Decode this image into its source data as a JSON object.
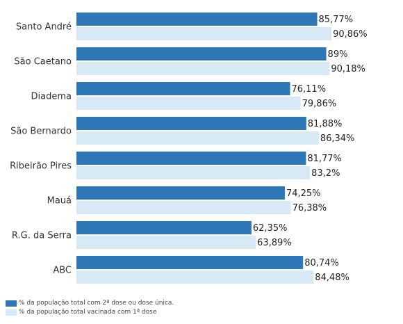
{
  "chart_data": {
    "type": "bar",
    "orientation": "horizontal",
    "categories": [
      "Santo André",
      "São Caetano",
      "Diadema",
      "São Bernardo",
      "Ribeirão Pires",
      "Mauá",
      "R.G. da Serra",
      "ABC"
    ],
    "series": [
      {
        "name": "% da população total com 2ª dose ou dose única.",
        "color": "#2e78b7",
        "values": [
          85.77,
          89,
          76.11,
          81.88,
          81.77,
          74.25,
          62.35,
          80.74
        ],
        "labels": [
          "85,77%",
          "89%",
          "76,11%",
          "81,88%",
          "81,77%",
          "74,25%",
          "62,35%",
          "80,74%"
        ]
      },
      {
        "name": "% da população total vacinada com 1ª dose",
        "color": "#d6e9f5",
        "values": [
          90.86,
          90.18,
          79.86,
          86.34,
          83.2,
          76.38,
          63.89,
          84.48
        ],
        "labels": [
          "90,86%",
          "90,18%",
          "79,86%",
          "86,34%",
          "83,2%",
          "76,38%",
          "63,89%",
          "84,48%"
        ]
      }
    ],
    "legend_position": "bottom-left",
    "grid": false
  }
}
